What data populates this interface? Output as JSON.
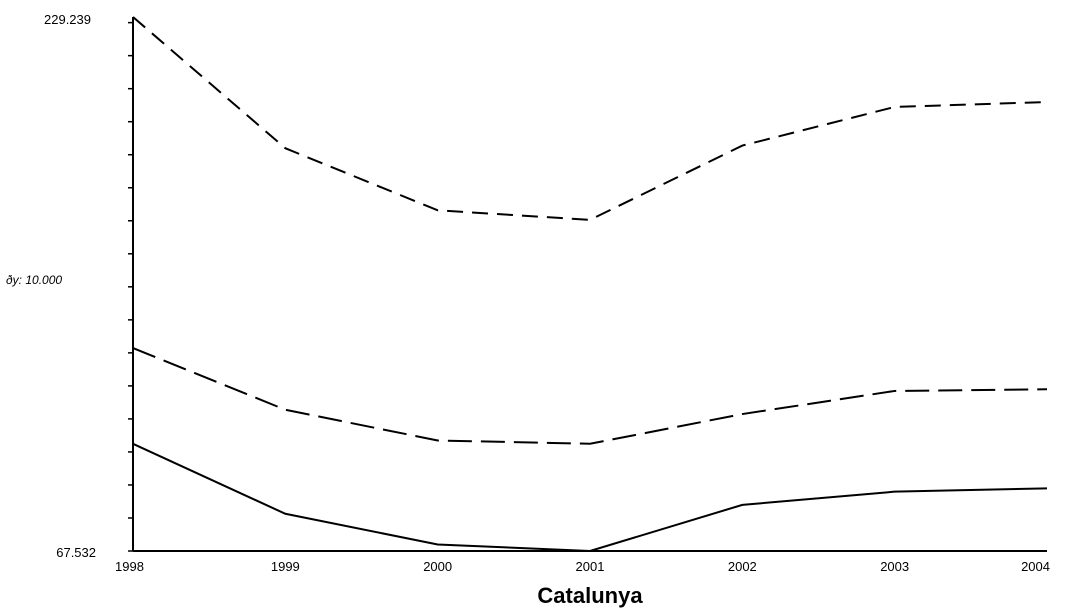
{
  "chart_data": {
    "type": "line",
    "title": "",
    "xlabel": "Catalunya",
    "ylabel": "",
    "x": [
      "1998",
      "1999",
      "2000",
      "2001",
      "2002",
      "2003",
      "2004"
    ],
    "ylim": [
      67.532,
      229.239
    ],
    "y_top_label": "229.239",
    "y_bottom_label": "67.532",
    "y_step_label": "ðy: 10.000",
    "y_minor_step": 10,
    "series": [
      {
        "dash": "long-dash",
        "values": [
          229.239,
          189.5,
          170.7,
          167.8,
          190.3,
          202.0,
          203.5
        ]
      },
      {
        "dash": "dash",
        "values": [
          129.0,
          110.3,
          101.0,
          100.0,
          109.0,
          116.0,
          116.5
        ]
      },
      {
        "dash": "solid",
        "values": [
          100.0,
          78.8,
          69.5,
          67.532,
          81.5,
          85.5,
          86.5
        ]
      }
    ],
    "grid": false,
    "legend": "none"
  }
}
